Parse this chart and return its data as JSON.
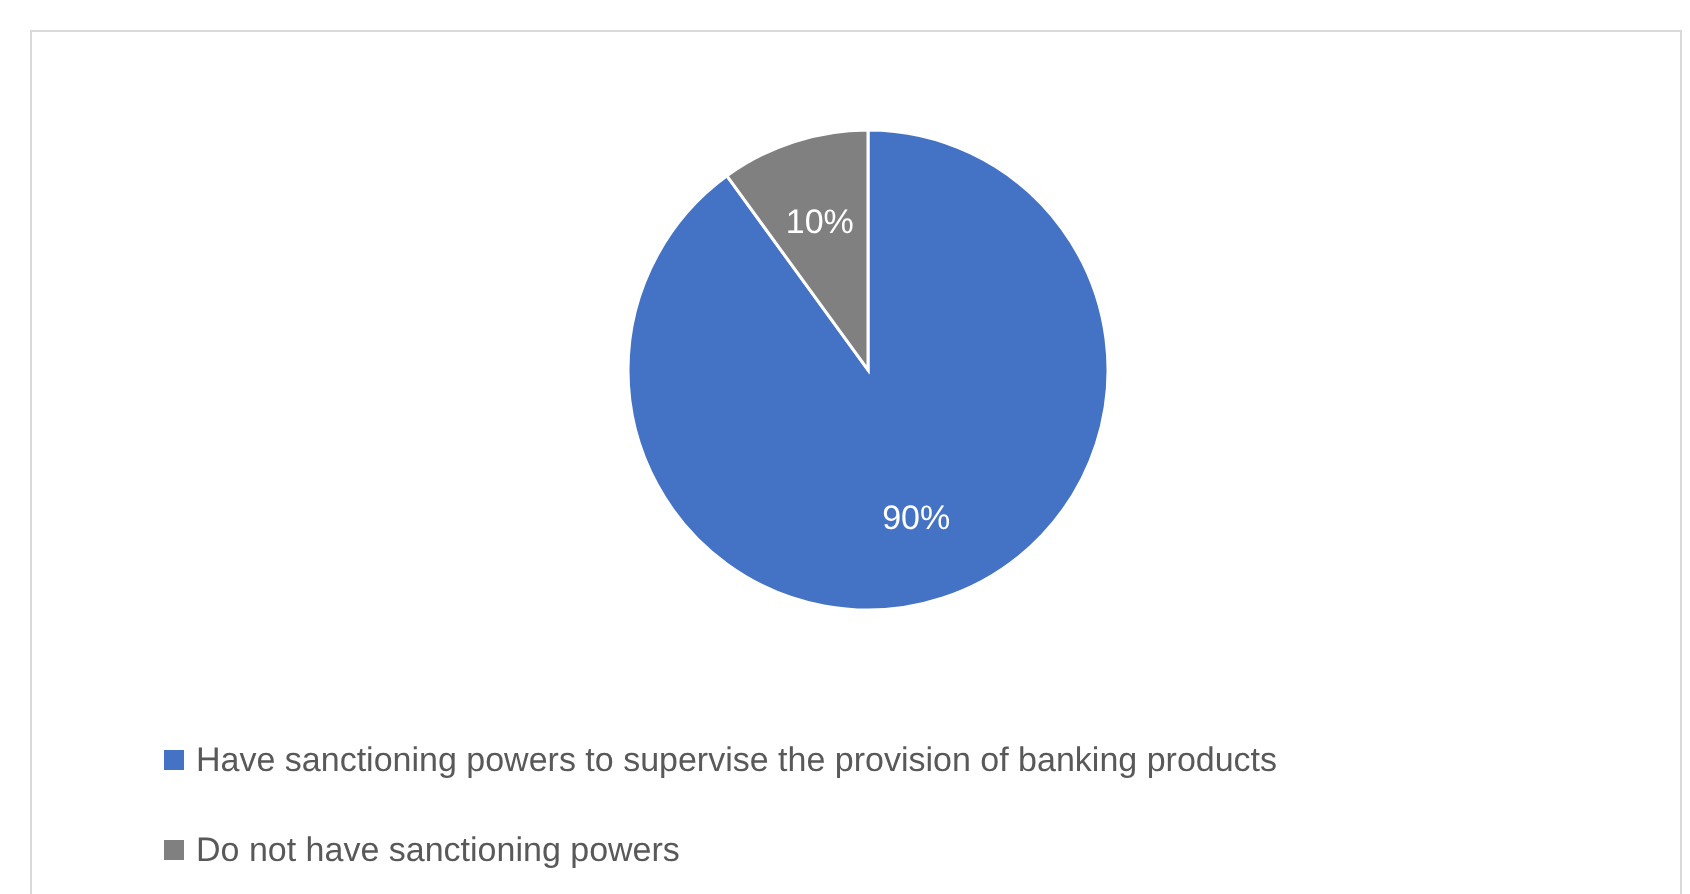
{
  "chart_data": {
    "type": "pie",
    "categories": [
      "Have sanctioning powers to supervise the provision of banking products",
      "Do not have sanctioning powers"
    ],
    "values": [
      90,
      10
    ],
    "value_labels": [
      "90%",
      "10%"
    ],
    "colors": [
      "#4472c4",
      "#808080"
    ],
    "legend": "bottom"
  }
}
